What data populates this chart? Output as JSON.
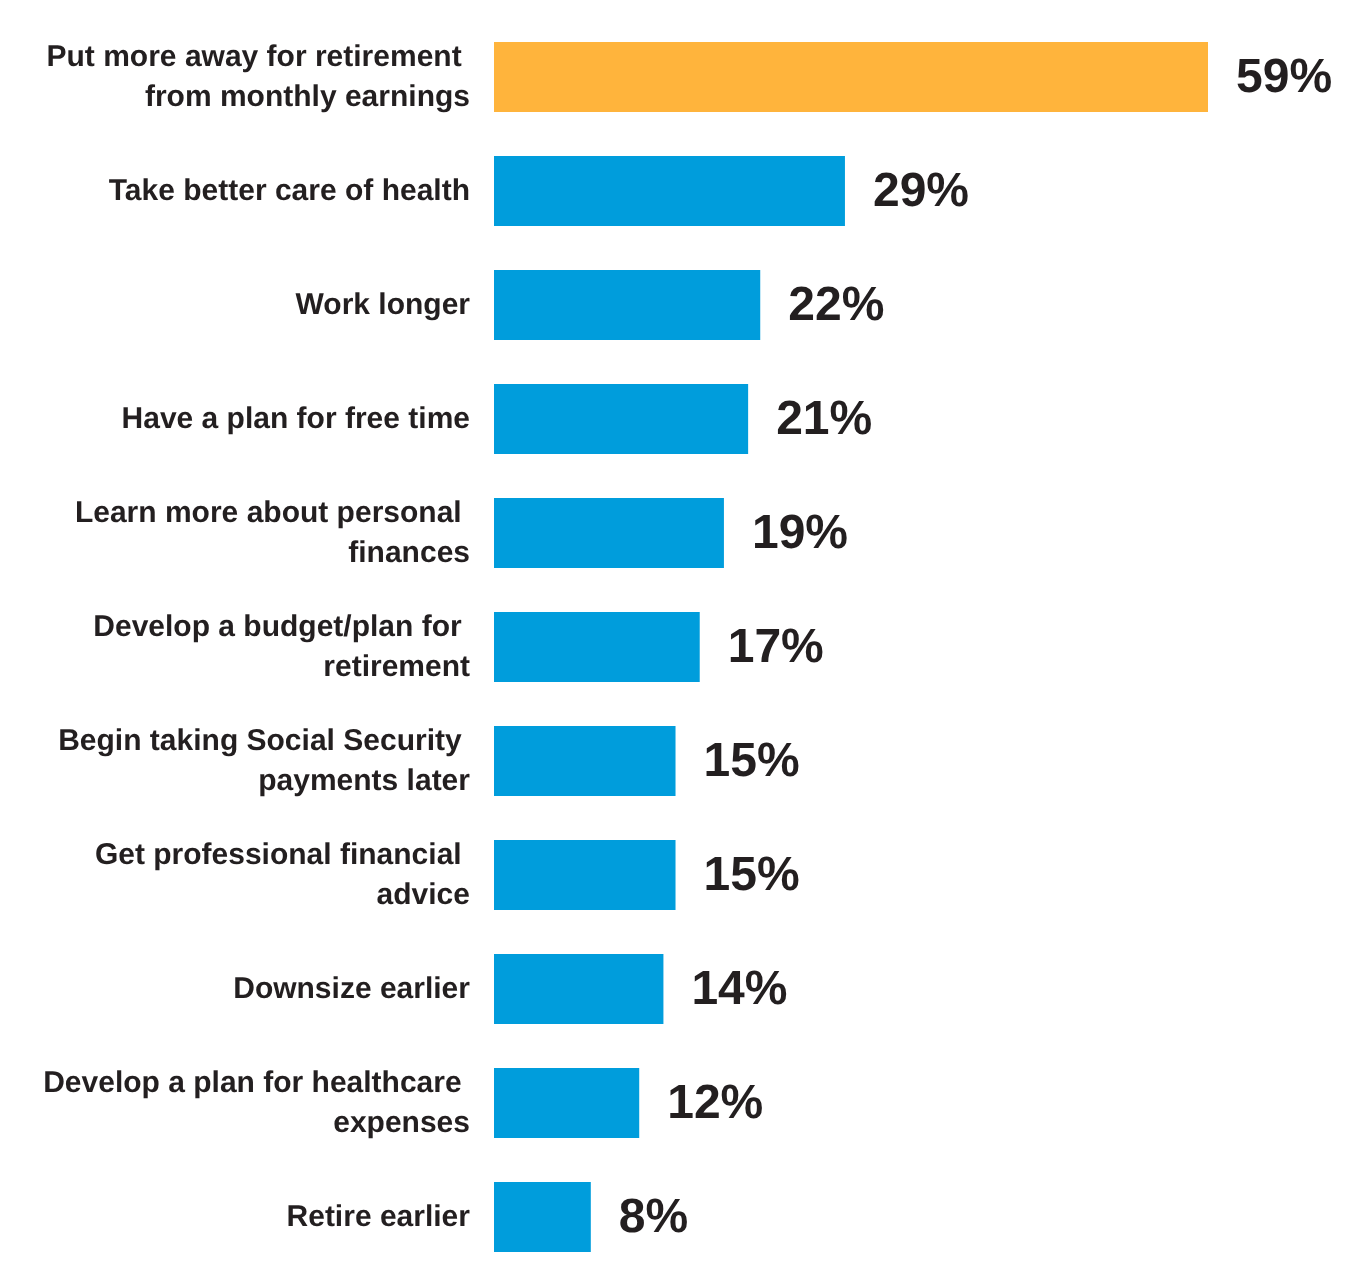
{
  "chart_data": {
    "type": "bar",
    "orientation": "horizontal",
    "categories": [
      "Put more away for retirement from monthly earnings",
      "Take better care of health",
      "Work longer",
      "Have a plan for free time",
      "Learn more about personal finances",
      "Develop a budget/plan for retirement",
      "Begin taking Social Security payments later",
      "Get professional financial advice",
      "Downsize earlier",
      "Develop a plan for healthcare expenses",
      "Retire earlier"
    ],
    "values": [
      59,
      29,
      22,
      21,
      19,
      17,
      15,
      15,
      14,
      12,
      8
    ],
    "value_labels": [
      "59%",
      "29%",
      "22%",
      "21%",
      "19%",
      "17%",
      "15%",
      "15%",
      "14%",
      "12%",
      "8%"
    ],
    "colors": [
      "#ffb43c",
      "#009ddc",
      "#009ddc",
      "#009ddc",
      "#009ddc",
      "#009ddc",
      "#009ddc",
      "#009ddc",
      "#009ddc",
      "#009ddc",
      "#009ddc"
    ]
  }
}
